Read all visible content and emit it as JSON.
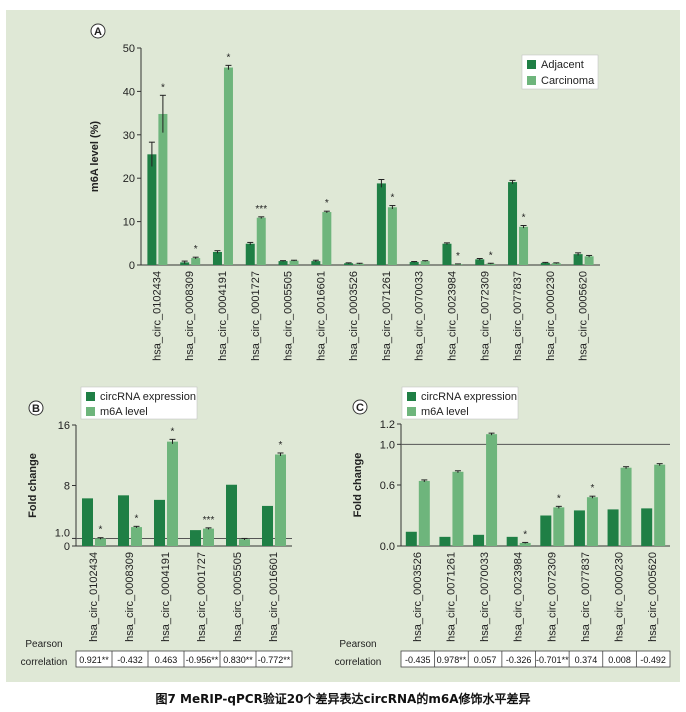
{
  "colors": {
    "dark": "#1f7f45",
    "light": "#6eb57c",
    "background": "#dfe8d6",
    "axis": "#333333"
  },
  "caption": "图7 MeRIP-qPCR验证20个差异表达circRNA的m6A修饰水平差异",
  "pearson_label": [
    "Pearson",
    "correlation"
  ],
  "chart_data": [
    {
      "panel": "A",
      "type": "bar",
      "ylabel": "m6A level (%)",
      "ylim": [
        0,
        50
      ],
      "yticks": [
        0,
        10,
        20,
        30,
        40,
        50
      ],
      "legend_position": "top-right",
      "categories": [
        "hsa_circ_0102434",
        "hsa_circ_0008309",
        "hsa_circ_0004191",
        "hsa_circ_0001727",
        "hsa_circ_0005505",
        "hsa_circ_0016601",
        "hsa_circ_0003526",
        "hsa_circ_0071261",
        "hsa_circ_0070033",
        "hsa_circ_0023984",
        "hsa_circ_0072309",
        "hsa_circ_0077837",
        "hsa_circ_0000230",
        "hsa_circ_0005620"
      ],
      "series": [
        {
          "name": "Adjacent",
          "values": [
            25.5,
            0.6,
            3.0,
            4.9,
            0.9,
            0.9,
            0.4,
            18.8,
            0.7,
            4.9,
            1.3,
            19.1,
            0.5,
            2.5
          ],
          "errors": [
            2.8,
            0.3,
            0.3,
            0.3,
            0.1,
            0.2,
            0.1,
            0.9,
            0.1,
            0.2,
            0.2,
            0.4,
            0.1,
            0.3
          ]
        },
        {
          "name": "Carcinoma",
          "values": [
            34.8,
            1.6,
            45.5,
            10.9,
            1.0,
            12.2,
            0.3,
            13.3,
            0.9,
            0.2,
            0.3,
            8.8,
            0.4,
            2.0
          ],
          "errors": [
            4.3,
            0.2,
            0.5,
            0.2,
            0.1,
            0.2,
            0.1,
            0.4,
            0.1,
            0.05,
            0.1,
            0.3,
            0.1,
            0.2
          ]
        }
      ],
      "significance": [
        "*",
        "*",
        "*",
        "***",
        "",
        "*",
        "",
        "*",
        "",
        "*",
        "*",
        "*",
        "",
        ""
      ]
    },
    {
      "panel": "B",
      "type": "bar",
      "ylabel": "Fold change",
      "ylim": [
        0,
        16
      ],
      "yticks": [
        0,
        1.0,
        8,
        16
      ],
      "reference_line": 1.0,
      "legend_position": "top-left",
      "categories": [
        "hsa_circ_0102434",
        "hsa_circ_0008309",
        "hsa_circ_0004191",
        "hsa_circ_0001727",
        "hsa_circ_0005505",
        "hsa_circ_0016601"
      ],
      "series": [
        {
          "name": "circRNA expression",
          "values": [
            6.3,
            6.7,
            6.1,
            2.1,
            8.1,
            5.3
          ],
          "errors": [
            0,
            0,
            0,
            0,
            0,
            0
          ]
        },
        {
          "name": "m6A level",
          "values": [
            1.0,
            2.5,
            13.8,
            2.3,
            0.9,
            12.1
          ],
          "errors": [
            0.1,
            0.1,
            0.3,
            0.1,
            0.1,
            0.2
          ]
        }
      ],
      "significance": [
        "*",
        "*",
        "*",
        "***",
        "",
        "*"
      ],
      "pearson": [
        "0.921**",
        "-0.432",
        "0.463",
        "-0.956**",
        "0.830**",
        "-0.772**"
      ]
    },
    {
      "panel": "C",
      "type": "bar",
      "ylabel": "Fold change",
      "ylim": [
        0,
        1.2
      ],
      "yticks": [
        0.0,
        0.6,
        1.0,
        1.2
      ],
      "reference_line": 1.0,
      "legend_position": "top-left",
      "categories": [
        "hsa_circ_0003526",
        "hsa_circ_0071261",
        "hsa_circ_0070033",
        "hsa_circ_0023984",
        "hsa_circ_0072309",
        "hsa_circ_0077837",
        "hsa_circ_0000230",
        "hsa_circ_0005620"
      ],
      "series": [
        {
          "name": "circRNA expression",
          "values": [
            0.14,
            0.09,
            0.11,
            0.09,
            0.3,
            0.35,
            0.36,
            0.37
          ],
          "errors": [
            0,
            0,
            0,
            0,
            0,
            0,
            0,
            0
          ]
        },
        {
          "name": "m6A level",
          "values": [
            0.64,
            0.73,
            1.1,
            0.03,
            0.38,
            0.48,
            0.77,
            0.8
          ],
          "errors": [
            0.01,
            0.01,
            0.01,
            0.005,
            0.01,
            0.01,
            0.01,
            0.01
          ]
        }
      ],
      "significance": [
        "",
        "",
        "",
        "*",
        "*",
        "*",
        "",
        ""
      ],
      "pearson": [
        "-0.435",
        "0.978**",
        "0.057",
        "-0.326",
        "-0.701**",
        "0.374",
        "0.008",
        "-0.492"
      ]
    }
  ]
}
